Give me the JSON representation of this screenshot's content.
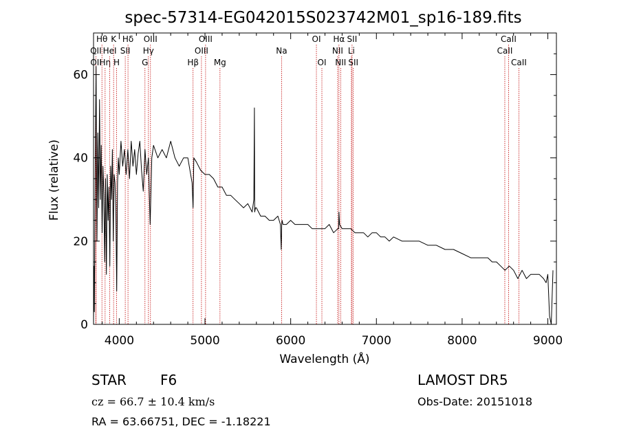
{
  "chart_data": {
    "type": "line",
    "title": "spec-57314-EG042015S023742M01_sp16-189.fits",
    "xlabel": "Wavelength (Å)",
    "ylabel": "Flux (relative)",
    "xlim": [
      3700,
      9100
    ],
    "ylim": [
      0,
      70
    ],
    "xticks": [
      4000,
      5000,
      6000,
      7000,
      8000,
      9000
    ],
    "yticks": [
      0,
      20,
      40,
      60
    ],
    "grid": false,
    "series": [
      {
        "color": "#000000",
        "x": [
          3700,
          3705,
          3710,
          3720,
          3730,
          3740,
          3750,
          3760,
          3770,
          3780,
          3790,
          3800,
          3810,
          3820,
          3830,
          3840,
          3850,
          3860,
          3870,
          3880,
          3890,
          3900,
          3910,
          3920,
          3930,
          3940,
          3950,
          3960,
          3970,
          3980,
          3990,
          4000,
          4020,
          4040,
          4060,
          4080,
          4100,
          4120,
          4140,
          4160,
          4180,
          4200,
          4220,
          4240,
          4260,
          4280,
          4300,
          4320,
          4340,
          4360,
          4380,
          4400,
          4450,
          4500,
          4550,
          4600,
          4650,
          4700,
          4750,
          4800,
          4850,
          4861,
          4870,
          4900,
          4950,
          5000,
          5050,
          5100,
          5150,
          5200,
          5250,
          5300,
          5350,
          5400,
          5450,
          5500,
          5550,
          5570,
          5577,
          5580,
          5590,
          5600,
          5650,
          5700,
          5750,
          5800,
          5850,
          5880,
          5890,
          5895,
          5900,
          5910,
          5950,
          6000,
          6050,
          6100,
          6150,
          6200,
          6250,
          6300,
          6350,
          6400,
          6450,
          6500,
          6550,
          6560,
          6563,
          6570,
          6600,
          6650,
          6700,
          6750,
          6800,
          6850,
          6900,
          6950,
          7000,
          7050,
          7100,
          7150,
          7200,
          7300,
          7400,
          7500,
          7600,
          7700,
          7800,
          7900,
          8000,
          8100,
          8200,
          8300,
          8350,
          8400,
          8450,
          8500,
          8550,
          8600,
          8650,
          8700,
          8750,
          8800,
          8850,
          8900,
          8950,
          8980,
          9000,
          9020,
          9040,
          9060
        ],
        "y": [
          0,
          14,
          3,
          40,
          62,
          20,
          46,
          28,
          54,
          30,
          43,
          22,
          38,
          31,
          15,
          35,
          12,
          36,
          25,
          33,
          14,
          38,
          30,
          42,
          20,
          36,
          34,
          28,
          8,
          34,
          40,
          36,
          44,
          38,
          42,
          36,
          42,
          35,
          44,
          38,
          42,
          36,
          41,
          44,
          37,
          32,
          42,
          36,
          40,
          24,
          40,
          43,
          40,
          42,
          40,
          44,
          40,
          38,
          40,
          40,
          34,
          28,
          40,
          39,
          37,
          36,
          36,
          35,
          33,
          33,
          31,
          31,
          30,
          29,
          28,
          29,
          27,
          30,
          52,
          27,
          28,
          28,
          26,
          26,
          25,
          25,
          26,
          24,
          18,
          24,
          25,
          24,
          24,
          25,
          24,
          24,
          24,
          24,
          23,
          23,
          23,
          23,
          24,
          22,
          23,
          23,
          27,
          24,
          23,
          23,
          23,
          22,
          22,
          22,
          21,
          22,
          22,
          21,
          21,
          20,
          21,
          20,
          20,
          20,
          19,
          19,
          18,
          18,
          17,
          16,
          16,
          16,
          15,
          15,
          14,
          13,
          14,
          13,
          11,
          13,
          11,
          12,
          12,
          12,
          11,
          10,
          12,
          2,
          0,
          13
        ]
      }
    ],
    "lines": [
      {
        "label": "OII",
        "x": 3727,
        "row": 2
      },
      {
        "label": "OII",
        "x": 3729,
        "row": 3
      },
      {
        "label": "Hθ",
        "x": 3798,
        "row": 1
      },
      {
        "label": "Hη",
        "x": 3835,
        "row": 3
      },
      {
        "label": "HeI",
        "x": 3889,
        "row": 2
      },
      {
        "label": "K",
        "x": 3934,
        "row": 1
      },
      {
        "label": "H",
        "x": 3969,
        "row": 3
      },
      {
        "label": "SII",
        "x": 4070,
        "row": 2
      },
      {
        "label": "Hδ",
        "x": 4102,
        "row": 1
      },
      {
        "label": "G",
        "x": 4300,
        "row": 3
      },
      {
        "label": "Hγ",
        "x": 4340,
        "row": 2
      },
      {
        "label": "OIII",
        "x": 4364,
        "row": 1
      },
      {
        "label": "Hβ",
        "x": 4861,
        "row": 3
      },
      {
        "label": "OIII",
        "x": 4959,
        "row": 2
      },
      {
        "label": "OIII",
        "x": 5007,
        "row": 1
      },
      {
        "label": "Mg",
        "x": 5175,
        "row": 3
      },
      {
        "label": "Na",
        "x": 5894,
        "row": 2
      },
      {
        "label": "OI",
        "x": 6300,
        "row": 1
      },
      {
        "label": "OI",
        "x": 6364,
        "row": 3
      },
      {
        "label": "NII",
        "x": 6548,
        "row": 2
      },
      {
        "label": "Hα",
        "x": 6563,
        "row": 1
      },
      {
        "label": "NII",
        "x": 6583,
        "row": 3
      },
      {
        "label": "Li",
        "x": 6708,
        "row": 2
      },
      {
        "label": "SII",
        "x": 6716,
        "row": 1
      },
      {
        "label": "SII",
        "x": 6731,
        "row": 3
      },
      {
        "label": "CaII",
        "x": 8498,
        "row": 2
      },
      {
        "label": "CaII",
        "x": 8542,
        "row": 1
      },
      {
        "label": "CaII",
        "x": 8662,
        "row": 3
      }
    ]
  },
  "info": {
    "classification": "STAR",
    "subclass": "F6",
    "survey": "LAMOST DR5",
    "cz": "cz = 66.7 ± 10.4 km/s",
    "obs_date": "Obs-Date: 20151018",
    "coords": "RA =  63.66751, DEC =  -1.18221"
  }
}
